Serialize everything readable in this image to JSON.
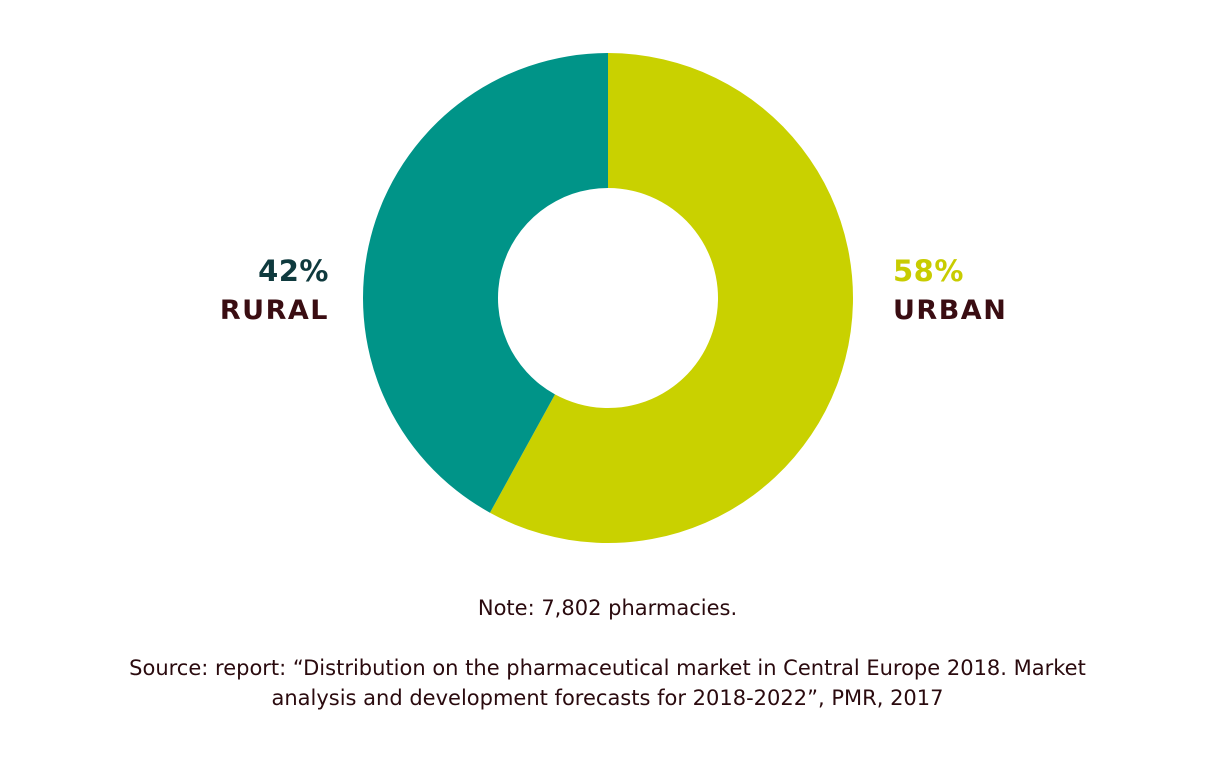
{
  "chart_data": {
    "type": "pie",
    "subtype": "donut",
    "title": "",
    "slices": [
      {
        "label": "URBAN",
        "value": 58,
        "display": "58%",
        "color": "#c9d100"
      },
      {
        "label": "RURAL",
        "value": 42,
        "display": "42%",
        "color": "#009488"
      }
    ],
    "start_angle": "12 o'clock",
    "direction": "clockwise",
    "legend": "none (direct labels left and right)"
  },
  "labels": {
    "rural_pct": "42%",
    "rural_name": "RURAL",
    "urban_pct": "58%",
    "urban_name": "URBAN"
  },
  "footer": {
    "note": "Note: 7,802 pharmacies.",
    "source_line1": "Source: report: “Distribution on the pharmaceutical market in Central Europe 2018. Market",
    "source_line2": "analysis and development forecasts for 2018-2022”, PMR, 2017"
  }
}
